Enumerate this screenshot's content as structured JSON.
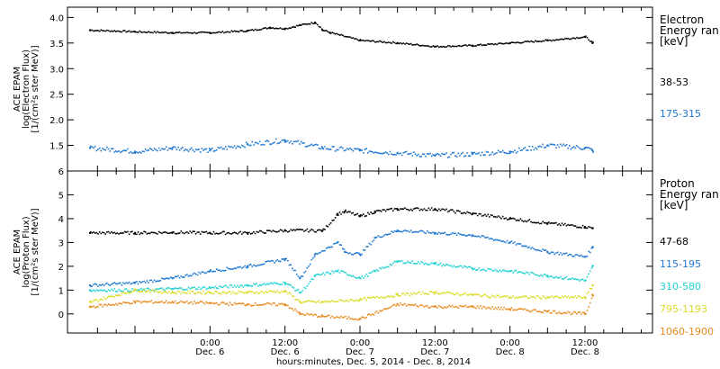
{
  "chart_data": [
    {
      "type": "scatter",
      "ylabel_lines": [
        "ACE EPAM",
        "log(Electron Flux)",
        "[1/(cm²s ster MeV)]"
      ],
      "y_ticks": [
        "1.5",
        "2.0",
        "2.5",
        "3.0",
        "3.5",
        "4.0"
      ],
      "ylim": [
        1.0,
        4.2
      ],
      "legend": {
        "title_lines": [
          "Electron",
          "Energy ran",
          "[keV]"
        ],
        "entries": [
          {
            "label": "38-53",
            "color": "#000000"
          },
          {
            "label": "175-315",
            "color": "#1e78d2"
          }
        ]
      },
      "series": [
        {
          "label": "38-53",
          "color": "#000000",
          "x": [
            -0.8,
            -0.5,
            -0.25,
            0.0,
            0.25,
            0.4,
            0.5,
            0.6,
            0.7,
            0.75,
            0.8,
            1.0,
            1.25,
            1.5,
            1.75,
            2.0,
            2.25,
            2.5,
            2.55
          ],
          "y": [
            3.75,
            3.72,
            3.7,
            3.7,
            3.74,
            3.8,
            3.78,
            3.85,
            3.9,
            3.75,
            3.7,
            3.55,
            3.5,
            3.43,
            3.45,
            3.5,
            3.55,
            3.62,
            3.5
          ]
        },
        {
          "label": "175-315",
          "color": "#1e78d2",
          "x": [
            -0.8,
            -0.5,
            -0.25,
            0.0,
            0.25,
            0.5,
            0.75,
            1.0,
            1.25,
            1.5,
            1.75,
            2.0,
            2.25,
            2.5,
            2.55
          ],
          "y": [
            1.45,
            1.38,
            1.45,
            1.4,
            1.52,
            1.6,
            1.45,
            1.4,
            1.35,
            1.3,
            1.33,
            1.38,
            1.5,
            1.45,
            1.4
          ]
        }
      ]
    },
    {
      "type": "scatter",
      "ylabel_lines": [
        "ACE EPAM",
        "log(Proton Flux)",
        "[1/(cm²s ster MeV)]"
      ],
      "y_ticks": [
        "0",
        "1",
        "2",
        "3",
        "4",
        "5",
        "6"
      ],
      "ylim": [
        -0.8,
        6.0
      ],
      "legend": {
        "title_lines": [
          "Proton",
          "Energy ran",
          "[keV]"
        ],
        "entries": [
          {
            "label": "47-68",
            "color": "#000000"
          },
          {
            "label": "115-195",
            "color": "#1e78d2"
          },
          {
            "label": "310-580",
            "color": "#22d2d2"
          },
          {
            "label": "795-1193",
            "color": "#dcdc28"
          },
          {
            "label": "1060-1900",
            "color": "#e88a1e"
          }
        ]
      },
      "series": [
        {
          "label": "47-68",
          "color": "#000000",
          "x": [
            -0.8,
            -0.5,
            -0.25,
            0.0,
            0.25,
            0.5,
            0.75,
            0.85,
            0.9,
            1.0,
            1.1,
            1.25,
            1.5,
            1.75,
            2.0,
            2.25,
            2.5,
            2.55
          ],
          "y": [
            3.4,
            3.4,
            3.42,
            3.4,
            3.4,
            3.5,
            3.5,
            4.2,
            4.3,
            4.1,
            4.3,
            4.4,
            4.4,
            4.2,
            4.0,
            3.8,
            3.65,
            3.6
          ]
        },
        {
          "label": "115-195",
          "color": "#1e78d2",
          "x": [
            -0.8,
            -0.5,
            -0.25,
            0.0,
            0.25,
            0.5,
            0.6,
            0.7,
            0.85,
            0.9,
            1.0,
            1.1,
            1.25,
            1.5,
            1.75,
            2.0,
            2.25,
            2.5,
            2.55
          ],
          "y": [
            1.2,
            1.3,
            1.5,
            1.8,
            2.0,
            2.3,
            1.5,
            2.5,
            3.0,
            2.6,
            2.5,
            3.2,
            3.5,
            3.4,
            3.3,
            3.0,
            2.6,
            2.4,
            2.8
          ]
        },
        {
          "label": "310-580",
          "color": "#22d2d2",
          "x": [
            -0.8,
            -0.5,
            -0.25,
            0.0,
            0.25,
            0.5,
            0.6,
            0.7,
            0.85,
            1.0,
            1.1,
            1.25,
            1.5,
            1.75,
            2.0,
            2.25,
            2.5,
            2.55
          ],
          "y": [
            1.0,
            1.0,
            1.05,
            1.1,
            1.2,
            1.3,
            0.9,
            1.6,
            1.8,
            1.5,
            1.8,
            2.2,
            2.1,
            1.9,
            1.8,
            1.6,
            1.4,
            2.0
          ]
        },
        {
          "label": "795-1193",
          "color": "#dcdc28",
          "x": [
            -0.8,
            -0.5,
            -0.25,
            0.0,
            0.25,
            0.5,
            0.6,
            0.75,
            1.0,
            1.25,
            1.5,
            1.75,
            2.0,
            2.25,
            2.5,
            2.55
          ],
          "y": [
            0.5,
            1.0,
            0.9,
            0.9,
            0.9,
            0.95,
            0.5,
            0.5,
            0.6,
            0.8,
            0.9,
            0.8,
            0.7,
            0.7,
            0.7,
            1.2
          ]
        },
        {
          "label": "1060-1900",
          "color": "#e88a1e",
          "x": [
            -0.8,
            -0.5,
            -0.25,
            0.0,
            0.25,
            0.5,
            0.6,
            0.75,
            1.0,
            1.25,
            1.5,
            1.75,
            2.0,
            2.25,
            2.5,
            2.55
          ],
          "y": [
            0.3,
            0.5,
            0.5,
            0.45,
            0.4,
            0.4,
            0.0,
            -0.1,
            -0.2,
            0.4,
            0.3,
            0.3,
            0.2,
            0.1,
            0.0,
            0.8
          ]
        }
      ]
    }
  ],
  "xaxis": {
    "xlim": [
      -0.95,
      2.95
    ],
    "major_ticks": [
      {
        "x": 0.0,
        "time": "0:00",
        "day": "Dec. 6"
      },
      {
        "x": 0.5,
        "time": "12:00",
        "day": "Dec. 6"
      },
      {
        "x": 1.0,
        "time": "0:00",
        "day": "Dec. 7"
      },
      {
        "x": 1.5,
        "time": "12:00",
        "day": "Dec. 7"
      },
      {
        "x": 2.0,
        "time": "0:00",
        "day": "Dec. 8"
      },
      {
        "x": 2.5,
        "time": "12:00",
        "day": "Dec. 8"
      }
    ],
    "label": "hours:minutes, Dec.  5, 2014 - Dec.  8, 2014"
  }
}
